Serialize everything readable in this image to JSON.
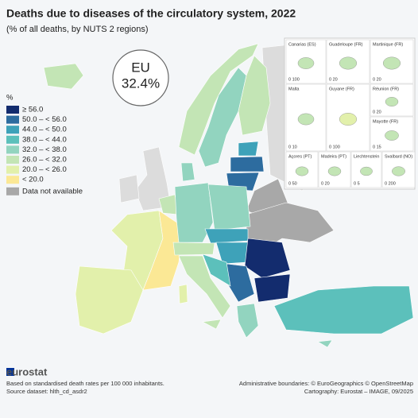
{
  "title": "Deaths due to diseases of the circulatory system, 2022",
  "subtitle": "(% of all deaths, by NUTS 2 regions)",
  "eu_badge": {
    "label": "EU",
    "value": "32.4%"
  },
  "legend": {
    "unit": "%",
    "items": [
      {
        "label": "≥ 56.0",
        "color": "#132c6e"
      },
      {
        "label": "50.0 – < 56.0",
        "color": "#2d6c9f"
      },
      {
        "label": "44.0 – < 50.0",
        "color": "#3ea2b9"
      },
      {
        "label": "38.0 – < 44.0",
        "color": "#5cc0bb"
      },
      {
        "label": "32.0 – < 38.0",
        "color": "#92d4bf"
      },
      {
        "label": "26.0 – < 32.0",
        "color": "#c3e5b5"
      },
      {
        "label": "20.0 – < 26.0",
        "color": "#e2f0ab"
      },
      {
        "label": "< 20.0",
        "color": "#fbe895"
      },
      {
        "label": "Data not available",
        "color": "#a8a8a8"
      }
    ]
  },
  "insets": [
    {
      "name": "Canarias (ES)",
      "scale": "0 100"
    },
    {
      "name": "Guadeloupe (FR)",
      "scale": "0 20"
    },
    {
      "name": "Martinique (FR)",
      "scale": "0 20"
    },
    {
      "name": "Réunion (FR)",
      "scale": "0 20"
    },
    {
      "name": "Malta",
      "scale": "0 10"
    },
    {
      "name": "Guyane (FR)",
      "scale": "0 100"
    },
    {
      "name": "Mayotte (FR)",
      "scale": "0 15"
    },
    {
      "name": "Açores (PT)",
      "scale": "0 50"
    },
    {
      "name": "Madeira (PT)",
      "scale": "0 20"
    },
    {
      "name": "Liechtenstein",
      "scale": "0 5"
    },
    {
      "name": "Svalbard (NO)",
      "scale": "0 200"
    }
  ],
  "footer": {
    "logo": "eurostat",
    "note": "Based on standardised death rates per 100 000 inhabitants.",
    "source": "Source dataset: hlth_cd_asdr2",
    "boundaries": "Administrative boundaries: © EuroGeographics © OpenStreetMap",
    "cartography": "Cartography: Eurostat – IMAGE, 09/2025"
  }
}
